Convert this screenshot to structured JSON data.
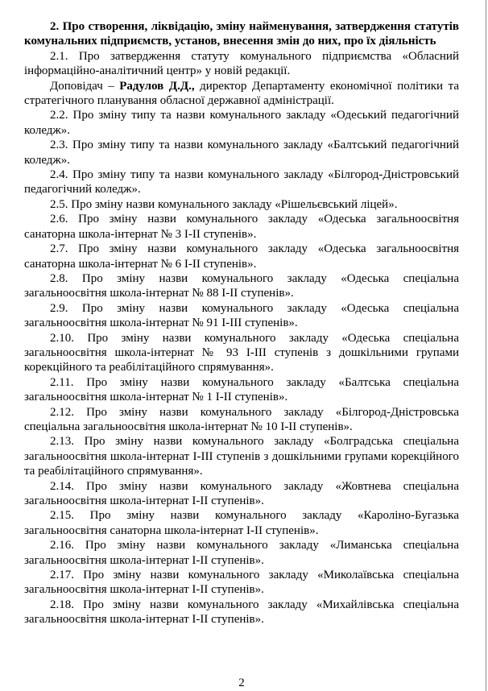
{
  "page": {
    "number": "2",
    "background_color": "#ffffff",
    "edge_line_color": "#8a8a8a",
    "text_color": "#000000"
  },
  "document": {
    "heading": "2. Про створення, ліквідацію, зміну найменування, затвердження статутів комунальних підприємств, установ, внесення змін до них, про їх діяльність",
    "speaker": {
      "prefix": "Доповідач – ",
      "name": "Радулов Д.Д.,",
      "rest": " директор Департаменту економічної політики та стратегічного планування обласної державної адміністрації."
    },
    "items": [
      {
        "number": "2.1",
        "text": "2.1. Про затвердження статуту комунального підприємства «Обласний інформаційно-аналітичний центр» у новій редакції."
      },
      {
        "number": "2.2",
        "text": "2.2. Про зміну типу та назви комунального закладу «Одеський педагогічний коледж»."
      },
      {
        "number": "2.3",
        "text": "2.3. Про зміну типу та назви комунального закладу «Балтський педагогічний коледж»."
      },
      {
        "number": "2.4",
        "text": "2.4. Про зміну типу та назви комунального закладу «Білгород-Дністровський педагогічний коледж»."
      },
      {
        "number": "2.5",
        "text": "2.5. Про зміну назви комунального закладу «Рішельєвський ліцей»."
      },
      {
        "number": "2.6",
        "text": "2.6. Про зміну назви комунального закладу «Одеська загальноосвітня санаторна школа-інтернат № 3 І-ІІ ступенів»."
      },
      {
        "number": "2.7",
        "text": "2.7. Про зміну назви комунального закладу «Одеська загальноосвітня санаторна школа-інтернат № 6 І-ІІ ступенів»."
      },
      {
        "number": "2.8",
        "text": "2.8. Про зміну назви комунального закладу «Одеська спеціальна загальноосвітня школа-інтернат № 88 І-ІІ ступенів»."
      },
      {
        "number": "2.9",
        "text": "2.9. Про зміну назви комунального закладу «Одеська спеціальна загальноосвітня школа-інтернат № 91 І-ІІІ ступенів»."
      },
      {
        "number": "2.10",
        "text": "2.10. Про зміну назви комунального закладу «Одеська спеціальна загальноосвітня школа-інтернат № 93 І-ІІІ ступенів з дошкільними групами корекційного та реабілітаційного спрямування»."
      },
      {
        "number": "2.11",
        "text": "2.11. Про зміну назви комунального закладу «Балтська спеціальна загальноосвітня школа-інтернат № 1 І-ІІ ступенів»."
      },
      {
        "number": "2.12",
        "text": "2.12. Про зміну назви комунального закладу «Білгород-Дністровська спеціальна загальноосвітня школа-інтернат № 10 І-ІІ ступенів»."
      },
      {
        "number": "2.13",
        "text": "2.13. Про зміну назви комунального закладу «Болградська спеціальна загальноосвітня школа-інтернат І-ІІІ ступенів з дошкільними групами корекційного та реабілітаційного спрямування»."
      },
      {
        "number": "2.14",
        "text": "2.14. Про зміну назви комунального закладу «Жовтнева спеціальна загальноосвітня школа-інтернат І-ІІ ступенів»."
      },
      {
        "number": "2.15",
        "text": "2.15. Про зміну назви комунального закладу «Кароліно-Бугазька загальноосвітня санаторна школа-інтернат І-ІІ ступенів»."
      },
      {
        "number": "2.16",
        "text": "2.16. Про зміну назви комунального закладу «Лиманська спеціальна загальноосвітня школа-інтернат І-ІІ ступенів»."
      },
      {
        "number": "2.17",
        "text": "2.17. Про зміну назви комунального закладу «Миколаївська спеціальна загальноосвітня школа-інтернат І-ІІ ступенів»."
      },
      {
        "number": "2.18",
        "text": "2.18. Про зміну назви комунального закладу «Михайлівська спеціальна загальноосвітня школа-інтернат І-ІІ ступенів»."
      }
    ]
  }
}
